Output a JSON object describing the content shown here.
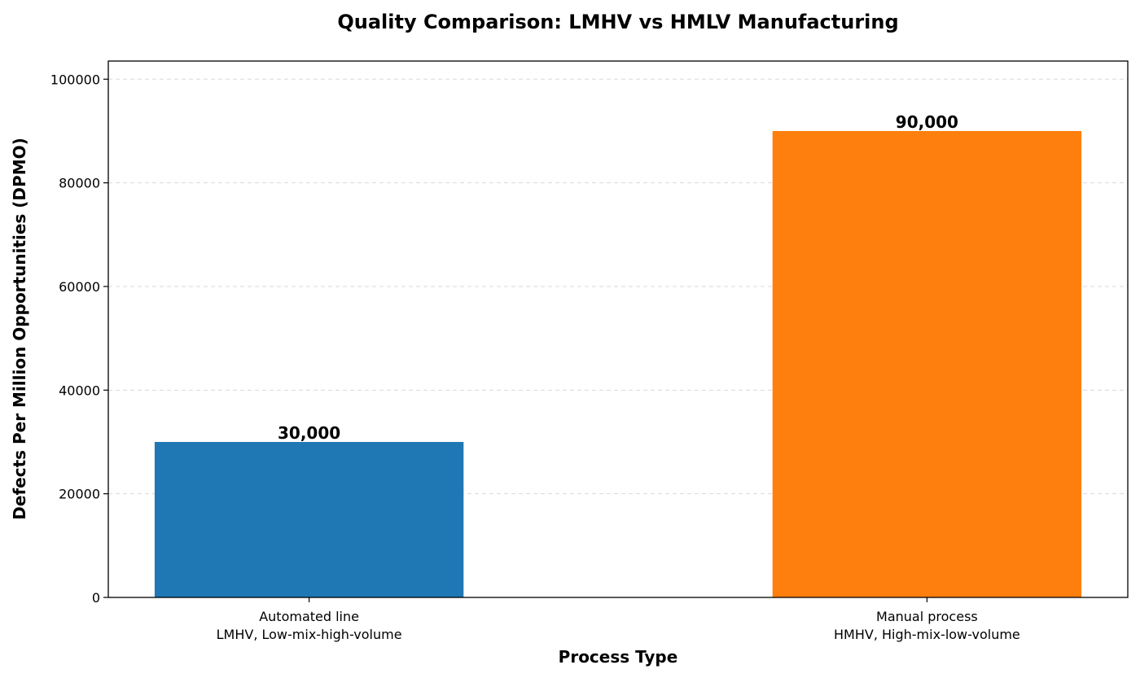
{
  "chart_data": {
    "type": "bar",
    "title": "Quality Comparison: LMHV vs HMLV Manufacturing",
    "xlabel": "Process Type",
    "ylabel": "Defects Per Million Opportunities (DPMO)",
    "categories": [
      [
        "Automated line",
        "LMHV, Low-mix-high-volume"
      ],
      [
        "Manual process",
        "HMHV, High-mix-low-volume"
      ]
    ],
    "values": [
      30000,
      90000
    ],
    "value_labels": [
      "30,000",
      "90,000"
    ],
    "colors": [
      "#1f77b4",
      "#ff7f0e"
    ],
    "ylim": [
      0,
      103500
    ],
    "yticks": [
      0,
      20000,
      40000,
      60000,
      80000,
      100000
    ],
    "ytick_labels": [
      "0",
      "20000",
      "40000",
      "60000",
      "80000",
      "100000"
    ],
    "grid": "y-dashed",
    "legend": "none"
  }
}
